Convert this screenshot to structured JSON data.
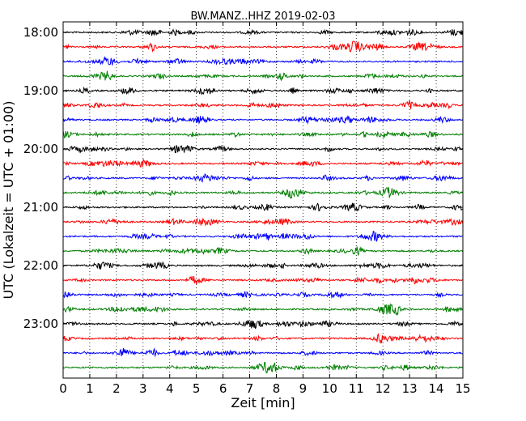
{
  "chart_data": {
    "type": "line",
    "title": "BW.MANZ..HHZ 2019-02-03",
    "xlabel": "Zeit  [min]",
    "ylabel": "UTC (Lokalzeit = UTC + 01:00)",
    "xlim": [
      0,
      15
    ],
    "x_ticks": [
      0,
      1,
      2,
      3,
      4,
      5,
      6,
      7,
      8,
      9,
      10,
      11,
      12,
      13,
      14,
      15
    ],
    "y_tick_labels": [
      "18:00",
      "19:00",
      "20:00",
      "21:00",
      "22:00",
      "23:00"
    ],
    "grid": "vertical dotted",
    "trace_interval_min": 15,
    "trace_start": "18:00",
    "trace_count": 24,
    "colors": [
      "#000000",
      "#ff0000",
      "#0000ff",
      "#007f00"
    ]
  }
}
